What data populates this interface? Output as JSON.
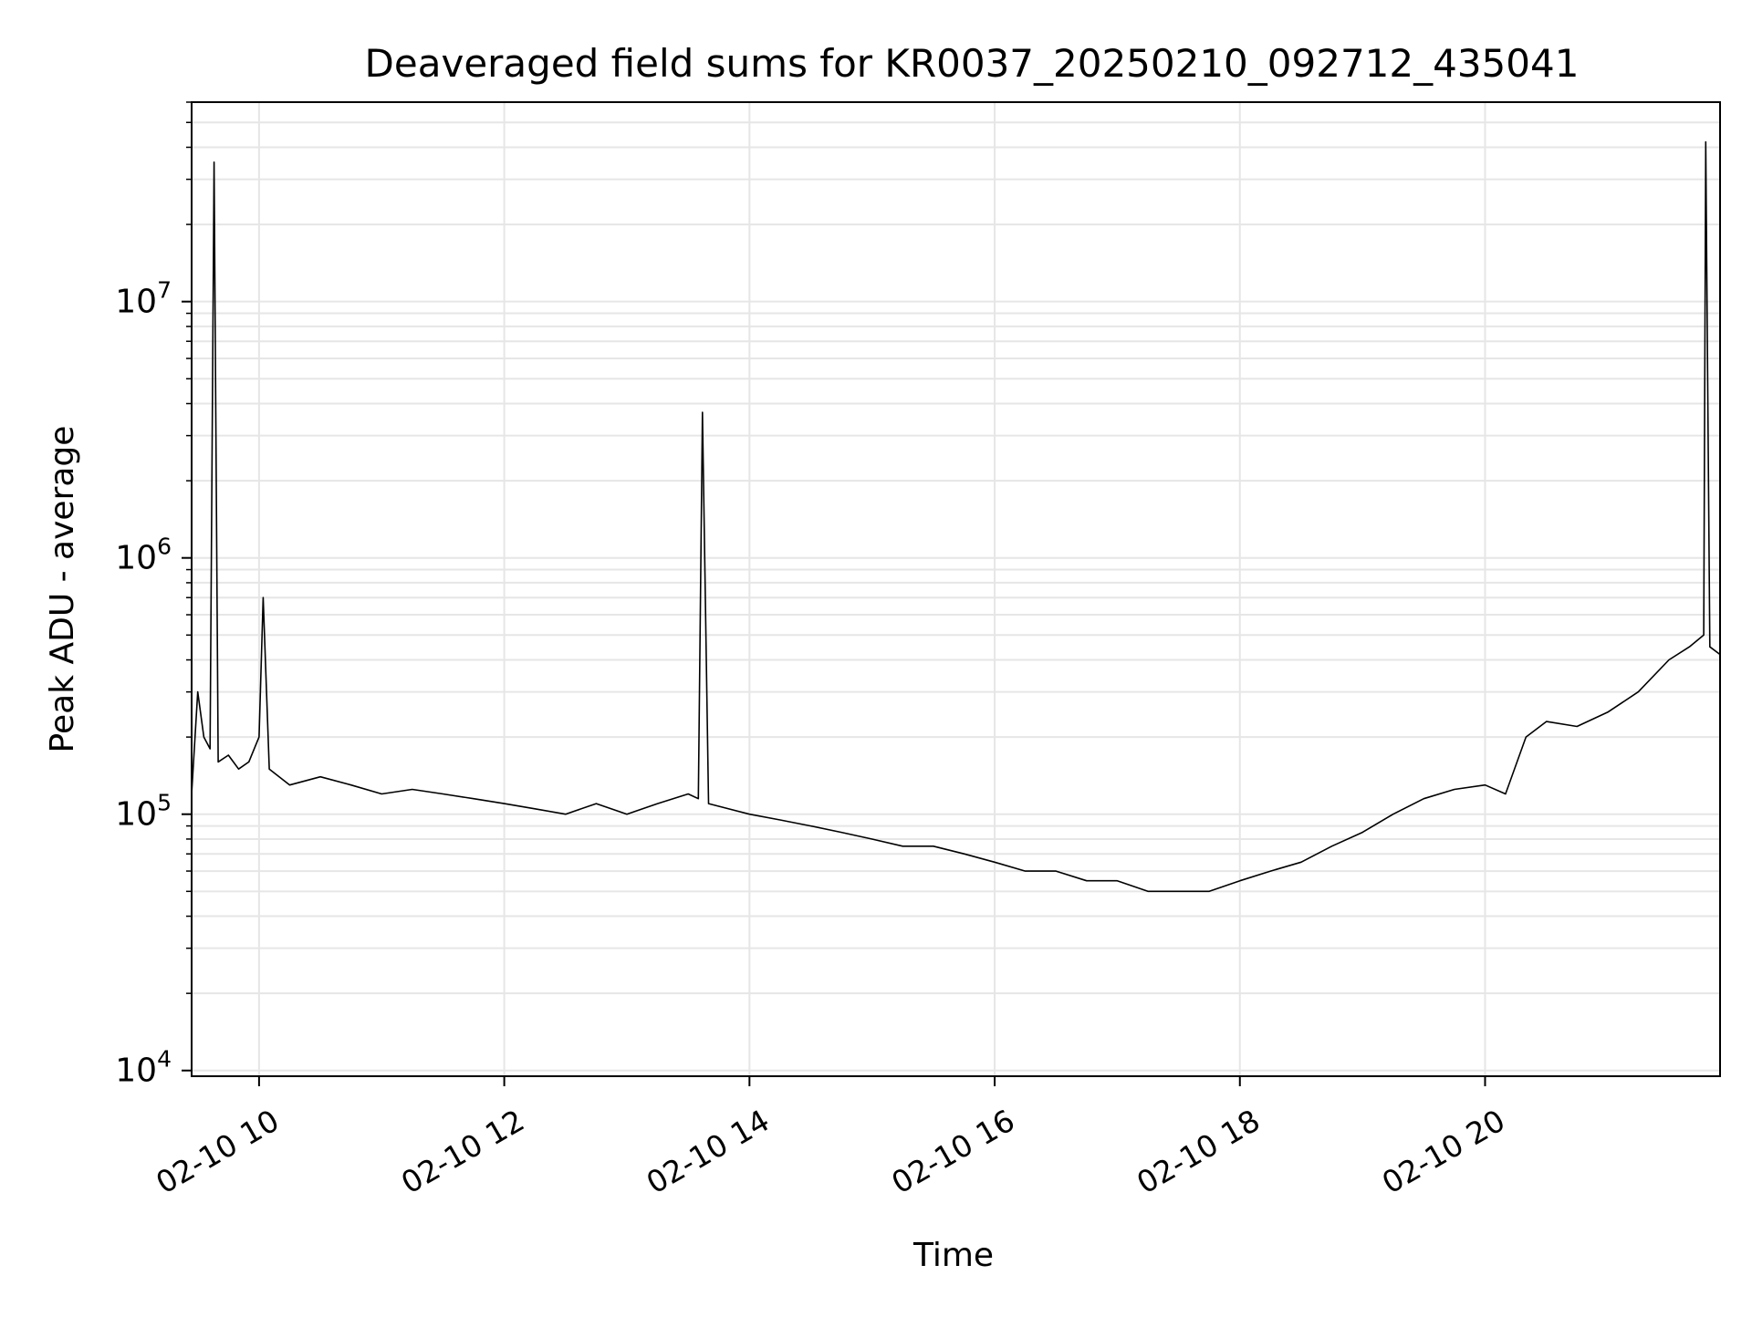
{
  "chart_data": {
    "type": "line",
    "title": "Deaveraged field sums for KR0037_20250210_092712_435041",
    "xlabel": "Time",
    "ylabel": "Peak ADU - average",
    "xlim": [
      "2025-02-10 09:27",
      "2025-02-10 21:55"
    ],
    "ylim": [
      9500,
      60000000
    ],
    "yscale": "log",
    "grid": true,
    "line_color": "#000000",
    "x_ticks": [
      {
        "value": "2025-02-10 10:00",
        "label": "02-10 10"
      },
      {
        "value": "2025-02-10 12:00",
        "label": "02-10 12"
      },
      {
        "value": "2025-02-10 14:00",
        "label": "02-10 14"
      },
      {
        "value": "2025-02-10 16:00",
        "label": "02-10 16"
      },
      {
        "value": "2025-02-10 18:00",
        "label": "02-10 18"
      },
      {
        "value": "2025-02-10 20:00",
        "label": "02-10 20"
      }
    ],
    "y_ticks": [
      {
        "value": 10000,
        "mantissa": "10",
        "exponent": "4"
      },
      {
        "value": 100000,
        "mantissa": "10",
        "exponent": "5"
      },
      {
        "value": 1000000,
        "mantissa": "10",
        "exponent": "6"
      },
      {
        "value": 10000000,
        "mantissa": "10",
        "exponent": "7"
      }
    ],
    "series": [
      {
        "x": [
          "2025-02-10 09:27",
          "2025-02-10 09:30",
          "2025-02-10 09:33",
          "2025-02-10 09:36",
          "2025-02-10 09:38",
          "2025-02-10 09:40",
          "2025-02-10 09:45",
          "2025-02-10 09:50",
          "2025-02-10 09:55",
          "2025-02-10 10:00",
          "2025-02-10 10:02",
          "2025-02-10 10:05",
          "2025-02-10 10:15",
          "2025-02-10 10:30",
          "2025-02-10 10:45",
          "2025-02-10 11:00",
          "2025-02-10 11:15",
          "2025-02-10 11:30",
          "2025-02-10 11:45",
          "2025-02-10 12:00",
          "2025-02-10 12:15",
          "2025-02-10 12:30",
          "2025-02-10 12:45",
          "2025-02-10 13:00",
          "2025-02-10 13:15",
          "2025-02-10 13:30",
          "2025-02-10 13:35",
          "2025-02-10 13:37",
          "2025-02-10 13:40",
          "2025-02-10 14:00",
          "2025-02-10 14:15",
          "2025-02-10 14:30",
          "2025-02-10 14:45",
          "2025-02-10 15:00",
          "2025-02-10 15:15",
          "2025-02-10 15:30",
          "2025-02-10 15:45",
          "2025-02-10 16:00",
          "2025-02-10 16:15",
          "2025-02-10 16:30",
          "2025-02-10 16:45",
          "2025-02-10 17:00",
          "2025-02-10 17:15",
          "2025-02-10 17:30",
          "2025-02-10 17:45",
          "2025-02-10 18:00",
          "2025-02-10 18:15",
          "2025-02-10 18:30",
          "2025-02-10 18:45",
          "2025-02-10 19:00",
          "2025-02-10 19:15",
          "2025-02-10 19:30",
          "2025-02-10 19:45",
          "2025-02-10 20:00",
          "2025-02-10 20:10",
          "2025-02-10 20:20",
          "2025-02-10 20:30",
          "2025-02-10 20:45",
          "2025-02-10 21:00",
          "2025-02-10 21:15",
          "2025-02-10 21:30",
          "2025-02-10 21:40",
          "2025-02-10 21:47",
          "2025-02-10 21:48",
          "2025-02-10 21:50",
          "2025-02-10 21:55"
        ],
        "y": [
          120000,
          300000,
          200000,
          180000,
          35000000,
          160000,
          170000,
          150000,
          160000,
          200000,
          700000,
          150000,
          130000,
          140000,
          130000,
          120000,
          125000,
          120000,
          115000,
          110000,
          105000,
          100000,
          110000,
          100000,
          110000,
          120000,
          115000,
          3700000,
          110000,
          100000,
          95000,
          90000,
          85000,
          80000,
          75000,
          75000,
          70000,
          65000,
          60000,
          60000,
          55000,
          55000,
          50000,
          50000,
          50000,
          55000,
          60000,
          65000,
          75000,
          85000,
          100000,
          115000,
          125000,
          130000,
          120000,
          200000,
          230000,
          220000,
          250000,
          300000,
          400000,
          450000,
          500000,
          42000000,
          450000,
          420000
        ]
      }
    ]
  }
}
